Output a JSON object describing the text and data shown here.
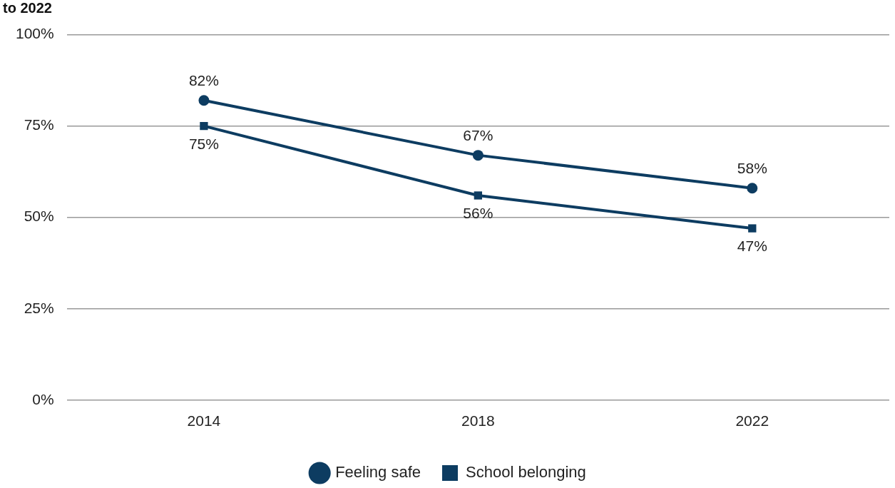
{
  "chart_data": {
    "type": "line",
    "title": "to 2022",
    "categories": [
      "2014",
      "2018",
      "2022"
    ],
    "series": [
      {
        "name": "Feeling safe",
        "color": "#0d3c61",
        "marker": "circle",
        "values": [
          82,
          67,
          58
        ],
        "value_labels": [
          "82%",
          "67%",
          "58%"
        ]
      },
      {
        "name": "School belonging",
        "color": "#0d3c61",
        "marker": "square",
        "values": [
          75,
          56,
          47
        ],
        "value_labels": [
          "75%",
          "56%",
          "47%"
        ]
      }
    ],
    "ylim": [
      0,
      100
    ],
    "yticks": [
      {
        "value": 0,
        "label": "0%"
      },
      {
        "value": 25,
        "label": "25%"
      },
      {
        "value": 50,
        "label": "50%"
      },
      {
        "value": 75,
        "label": "75%"
      },
      {
        "value": 100,
        "label": "100%"
      }
    ],
    "grid": "y",
    "legend": "bottom",
    "line_style": "solid"
  }
}
